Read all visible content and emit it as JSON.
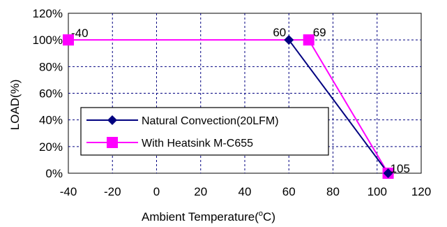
{
  "chart_data": {
    "type": "line",
    "title": "",
    "xlabel": "Ambient Temperature(",
    "xlabel_sup": "o",
    "xlabel_tail": "C)",
    "ylabel": "LOAD(%)",
    "xlim": [
      -40,
      120
    ],
    "ylim": [
      0,
      120
    ],
    "x_ticks": [
      -40,
      -20,
      0,
      20,
      40,
      60,
      80,
      100,
      120
    ],
    "x_tick_labels": [
      "-40",
      "-20",
      "0",
      "20",
      "40",
      "60",
      "80",
      "100",
      "120"
    ],
    "y_ticks": [
      0,
      20,
      40,
      60,
      80,
      100,
      120
    ],
    "y_tick_labels": [
      "0%",
      "20%",
      "40%",
      "60%",
      "80%",
      "100%",
      "120%"
    ],
    "grid": true,
    "legend_position": "lower-left",
    "series": [
      {
        "name": "Natural Convection(20LFM)",
        "color": "#000080",
        "marker": "diamond",
        "x": [
          60,
          105
        ],
        "y": [
          100,
          0
        ]
      },
      {
        "name": "With Heatsink M-C655",
        "color": "#ff00ff",
        "marker": "square",
        "x": [
          -40,
          69,
          105
        ],
        "y": [
          100,
          100,
          0
        ]
      }
    ],
    "annotations": [
      {
        "text": "-40",
        "x": -40,
        "y": 100
      },
      {
        "text": "60",
        "x": 60,
        "y": 100
      },
      {
        "text": "69",
        "x": 69,
        "y": 100
      },
      {
        "text": "105",
        "x": 105,
        "y": 0
      }
    ]
  }
}
